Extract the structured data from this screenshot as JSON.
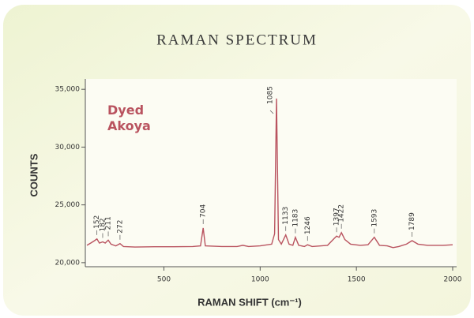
{
  "chart_data": {
    "type": "line",
    "title": "RAMAN SPECTRUM",
    "x_label": "RAMAN SHIFT (cm⁻¹)",
    "y_label": "COUNTS",
    "xlim": [
      100,
      2000
    ],
    "xticks": [
      500,
      1000,
      1500,
      2000
    ],
    "ylim": [
      19650,
      35900
    ],
    "yticks": [
      {
        "value": 20000,
        "label": "20,000"
      },
      {
        "value": 25000,
        "label": "25,000"
      },
      {
        "value": 30000,
        "label": "30,000"
      },
      {
        "value": 35000,
        "label": "35,000"
      }
    ],
    "series": [
      {
        "name": "Dyed Akoya",
        "color": "#b9535f",
        "x": [
          100,
          120,
          140,
          152,
          165,
          182,
          195,
          211,
          225,
          250,
          272,
          290,
          350,
          450,
          550,
          650,
          690,
          704,
          715,
          800,
          880,
          910,
          940,
          1000,
          1060,
          1075,
          1085,
          1095,
          1110,
          1133,
          1150,
          1170,
          1183,
          1200,
          1230,
          1246,
          1270,
          1350,
          1385,
          1397,
          1410,
          1422,
          1440,
          1470,
          1520,
          1560,
          1593,
          1620,
          1660,
          1690,
          1720,
          1760,
          1789,
          1820,
          1870,
          1950,
          2000
        ],
        "values": [
          21500,
          21700,
          21900,
          22050,
          21700,
          21800,
          21700,
          21950,
          21600,
          21450,
          21650,
          21400,
          21350,
          21380,
          21380,
          21400,
          21450,
          23000,
          21450,
          21400,
          21400,
          21500,
          21400,
          21450,
          21600,
          22500,
          34200,
          22000,
          21600,
          22400,
          21600,
          21500,
          22200,
          21500,
          21400,
          21550,
          21400,
          21500,
          22100,
          22300,
          22200,
          22600,
          22000,
          21600,
          21500,
          21550,
          22200,
          21500,
          21450,
          21300,
          21400,
          21600,
          21900,
          21600,
          21500,
          21500,
          21550
        ]
      }
    ],
    "peaks": [
      152,
      182,
      211,
      272,
      704,
      1085,
      1133,
      1183,
      1246,
      1397,
      1422,
      1593,
      1789
    ]
  }
}
